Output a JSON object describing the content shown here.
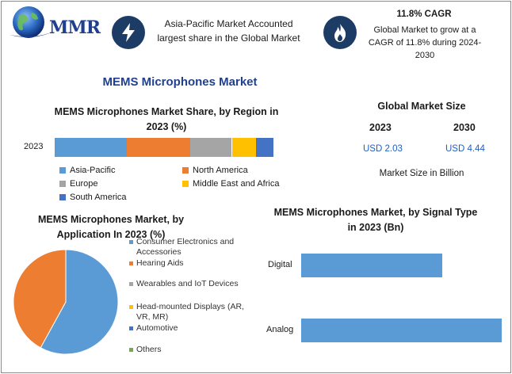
{
  "logo": {
    "text": "MMR"
  },
  "highlights": {
    "region_text": "Asia-Pacific Market Accounted largest share in the Global Market",
    "cagr_title": "11.8% CAGR",
    "cagr_text": "Global Market to grow at a CAGR of 11.8% during 2024-2030"
  },
  "title": "MEMS Microphones Market",
  "global_size": {
    "title": "Global Market Size",
    "year_a": "2023",
    "year_b": "2030",
    "value_a": "USD 2.03",
    "value_b": "USD 4.44",
    "unit_text": "Market Size in Billion"
  },
  "colors": {
    "blue": "#5b9bd5",
    "orange": "#ed7d31",
    "gray": "#a5a5a5",
    "yellow": "#ffc000",
    "darkblue": "#4472c4",
    "green": "#70ad47",
    "icon_bg": "#1c3c66"
  },
  "chart_data": [
    {
      "type": "bar",
      "orientation": "horizontal-stacked",
      "title": "MEMS Microphones Market Share, by Region in 2023 (%)",
      "categories": [
        "2023"
      ],
      "series": [
        {
          "name": "Asia-Pacific",
          "values": [
            33
          ],
          "color": "#5b9bd5"
        },
        {
          "name": "North America",
          "values": [
            29
          ],
          "color": "#ed7d31"
        },
        {
          "name": "Europe",
          "values": [
            19
          ],
          "color": "#a5a5a5"
        },
        {
          "name": "Middle East and Africa",
          "values": [
            11
          ],
          "color": "#ffc000"
        },
        {
          "name": "South America",
          "values": [
            8
          ],
          "color": "#4472c4"
        }
      ],
      "xlim": [
        0,
        100
      ],
      "legend": "bottom"
    },
    {
      "type": "pie",
      "title": "MEMS Microphones Market, by Application In 2023 (%)",
      "labels": [
        "Consumer Electronics and Accessories",
        "Hearing Aids",
        "Wearables and IoT Devices",
        "Head-mounted Displays (AR, VR, MR)",
        "Automotive",
        "Others"
      ],
      "values": [
        58,
        42,
        0,
        0,
        0,
        0
      ],
      "colors": [
        "#5b9bd5",
        "#ed7d31",
        "#a5a5a5",
        "#ffc000",
        "#4472c4",
        "#70ad47"
      ],
      "legend": "right"
    },
    {
      "type": "bar",
      "orientation": "horizontal",
      "title": "MEMS Microphones Market, by Signal Type in 2023 (Bn)",
      "categories": [
        "Digital",
        "Analog"
      ],
      "values": [
        0.84,
        1.19
      ],
      "xlim": [
        0,
        1.3
      ],
      "color": "#5b9bd5"
    }
  ]
}
